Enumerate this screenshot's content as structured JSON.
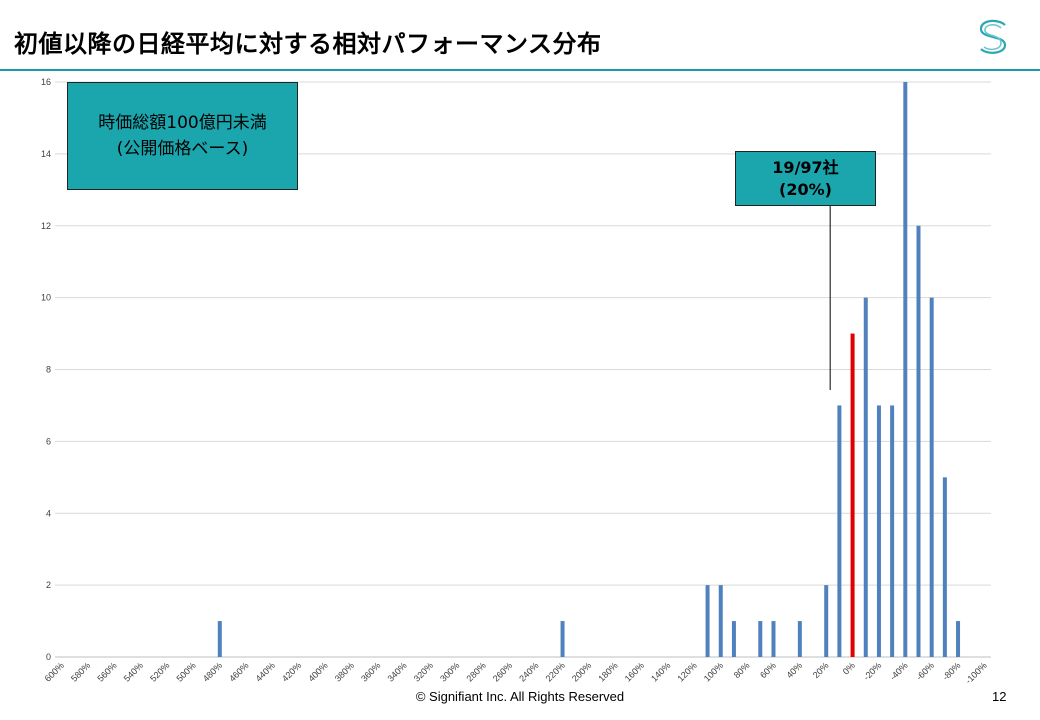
{
  "slide": {
    "title": "初値以降の日経平均に対する相対パフォーマンス分布",
    "footer": "© Signifiant Inc. All Rights Reserved",
    "page_number": "12",
    "logo_icon": "signifiant-s-logo-icon",
    "accent_color": "#1a9aa6"
  },
  "callouts": {
    "left_line1": "時価総額100億円未満",
    "left_line2": "(公開価格ベース)",
    "right_line1": "19/97社",
    "right_line2": "(20%)"
  },
  "chart_data": {
    "type": "bar",
    "title": "",
    "xlabel": "",
    "ylabel": "",
    "ylim": [
      0,
      16
    ],
    "yticks": [
      0,
      2,
      4,
      6,
      8,
      10,
      12,
      14,
      16
    ],
    "grid": true,
    "categories": [
      "600%",
      "590%",
      "580%",
      "570%",
      "560%",
      "550%",
      "540%",
      "530%",
      "520%",
      "510%",
      "500%",
      "490%",
      "480%",
      "470%",
      "460%",
      "450%",
      "440%",
      "430%",
      "420%",
      "410%",
      "400%",
      "390%",
      "380%",
      "370%",
      "360%",
      "350%",
      "340%",
      "330%",
      "320%",
      "310%",
      "300%",
      "290%",
      "280%",
      "270%",
      "260%",
      "250%",
      "240%",
      "230%",
      "220%",
      "210%",
      "200%",
      "190%",
      "180%",
      "170%",
      "160%",
      "150%",
      "140%",
      "130%",
      "120%",
      "110%",
      "100%",
      "90%",
      "80%",
      "70%",
      "60%",
      "50%",
      "40%",
      "30%",
      "20%",
      "10%",
      "0%",
      "-10%",
      "-20%",
      "-30%",
      "-40%",
      "-50%",
      "-60%",
      "-70%",
      "-80%",
      "-90%",
      "-100%"
    ],
    "values": [
      0,
      0,
      0,
      0,
      0,
      0,
      0,
      0,
      0,
      0,
      0,
      0,
      1,
      0,
      0,
      0,
      0,
      0,
      0,
      0,
      0,
      0,
      0,
      0,
      0,
      0,
      0,
      0,
      0,
      0,
      0,
      0,
      0,
      0,
      0,
      0,
      0,
      0,
      1,
      0,
      0,
      0,
      0,
      0,
      0,
      0,
      0,
      0,
      0,
      2,
      2,
      1,
      0,
      1,
      1,
      0,
      1,
      0,
      2,
      7,
      9,
      10,
      7,
      7,
      16,
      12,
      10,
      5,
      1,
      0,
      0
    ],
    "highlight_category": "0%",
    "bar_color": "#4f81bd",
    "highlight_color": "#e00000"
  }
}
